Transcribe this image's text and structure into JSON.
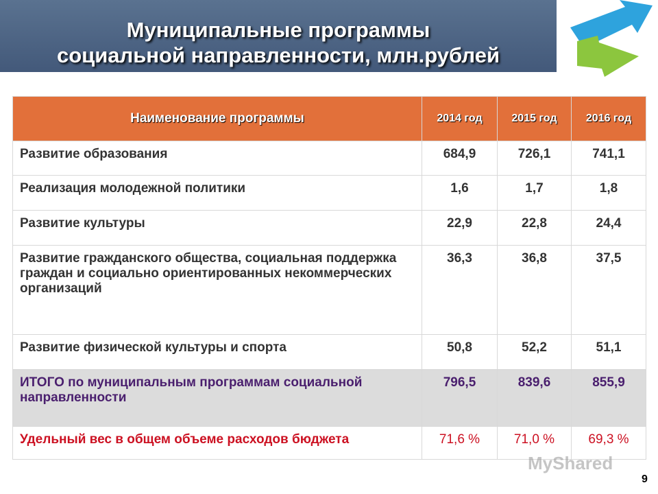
{
  "header": {
    "title_lines": [
      "Муниципальные программы",
      "социальной направленности, млн.рублей"
    ]
  },
  "table": {
    "columns": [
      "Наименование программы",
      "2014 год",
      "2015 год",
      "2016 год"
    ],
    "rows": [
      [
        "Развитие образования",
        "684,9",
        "726,1",
        "741,1"
      ],
      [
        "Реализация молодежной политики",
        "1,6",
        "1,7",
        "1,8"
      ],
      [
        "Развитие культуры",
        "22,9",
        "22,8",
        "24,4"
      ],
      [
        "Развитие гражданского общества, социальная поддержка граждан и социально ориентированных некоммерческих организаций",
        "36,3",
        "36,8",
        "37,5"
      ],
      [
        "Развитие физической культуры и спорта",
        "50,8",
        "52,2",
        "51,1"
      ],
      [
        "ИТОГО по муниципальным программам социальной направленности",
        "796,5",
        "839,6",
        "855,9"
      ],
      [
        "Удельный вес в общем объеме расходов бюджета",
        "71,6 %",
        "71,0 %",
        "69,3 %"
      ]
    ]
  },
  "watermark": "MyShared",
  "page_number": "9"
}
